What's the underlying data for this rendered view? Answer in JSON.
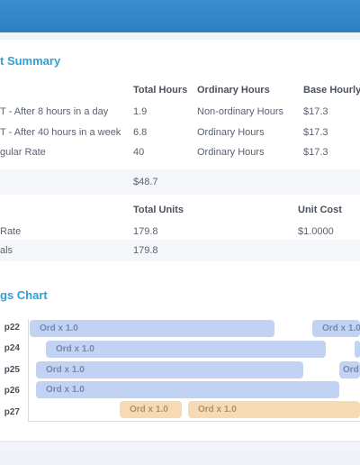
{
  "summary": {
    "title": "t Summary",
    "headers": {
      "total_hours": "Total Hours",
      "ordinary_hours": "Ordinary Hours",
      "base_hourly": "Base Hourly R"
    },
    "rows": [
      {
        "name": "T - After 8 hours in a day",
        "total": "1.9",
        "ordinary": "Non-ordinary Hours",
        "base": "$17.3"
      },
      {
        "name": "T - After 40 hours in a week",
        "total": "6.8",
        "ordinary": "Ordinary Hours",
        "base": "$17.3"
      },
      {
        "name": "gular Rate",
        "total": "40",
        "ordinary": "Ordinary Hours",
        "base": "$17.3"
      }
    ],
    "total_value": "$48.7"
  },
  "units": {
    "headers": {
      "total_units": "Total Units",
      "unit_cost": "Unit Cost"
    },
    "rows": [
      {
        "name": "Rate",
        "units": "179.8",
        "cost": "$1.0000"
      },
      {
        "name": "als",
        "units": "179.8",
        "cost": ""
      }
    ]
  },
  "chart": {
    "title": "gs Chart",
    "rows": [
      "p22",
      "p24",
      "p25",
      "p26",
      "p27"
    ],
    "bars": [
      {
        "row": 0,
        "label": "Ord x 1.0",
        "color": "blue"
      },
      {
        "row": 0,
        "label": "Ord x 1.0",
        "color": "blue"
      },
      {
        "row": 1,
        "label": "Ord x 1.0",
        "color": "blue"
      },
      {
        "row": 1,
        "label": "",
        "color": "blue"
      },
      {
        "row": 2,
        "label": "Ord x 1.0",
        "color": "blue"
      },
      {
        "row": 2,
        "label": "Ord",
        "color": "blue"
      },
      {
        "row": 3,
        "label": "Ord x 1.0",
        "color": "blue"
      },
      {
        "row": 4,
        "label": "Ord x 1.0",
        "color": "orange"
      },
      {
        "row": 4,
        "label": "Ord x 1.0",
        "color": "orange"
      }
    ],
    "colors": {
      "blue": "#c2d2f3",
      "orange": "#f6dab4"
    }
  }
}
